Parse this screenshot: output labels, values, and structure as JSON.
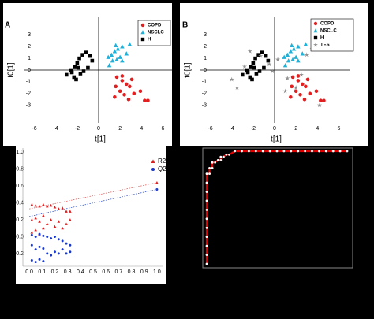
{
  "chart_data": [
    {
      "type": "scatter",
      "panel_label": "A",
      "xlabel": "t[1]",
      "ylabel": "t0[1]",
      "xlim": [
        -7,
        7
      ],
      "ylim": [
        -4.5,
        4.5
      ],
      "xticks": [
        -6,
        -4,
        -2,
        0,
        2,
        4,
        6
      ],
      "yticks": [
        -3,
        -2,
        -1,
        0,
        1,
        2,
        3
      ],
      "legend": "upper right",
      "series": [
        {
          "name": "COPD",
          "color": "#e02020",
          "marker": "circle",
          "x": [
            1.7,
            2.2,
            1.6,
            2.6,
            2.0,
            2.9,
            3.3,
            2.4,
            1.5,
            3.9,
            4.3,
            2.8,
            4.6,
            2.2,
            3.1
          ],
          "values": [
            -0.6,
            -0.5,
            -1.4,
            -1.2,
            -1.8,
            -1.4,
            -2.0,
            -2.1,
            -2.3,
            -1.8,
            -2.6,
            -2.5,
            -2.6,
            -0.9,
            -0.8
          ]
        },
        {
          "name": "NSCLC",
          "color": "#20b0d8",
          "marker": "triangle",
          "x": [
            0.9,
            1.2,
            1.5,
            1.8,
            2.2,
            1.3,
            1.7,
            2.0,
            1.0,
            2.6,
            2.9,
            1.6,
            2.2
          ],
          "values": [
            1.1,
            1.3,
            1.6,
            1.8,
            2.0,
            0.8,
            0.9,
            1.1,
            0.4,
            1.4,
            2.2,
            2.1,
            0.8
          ]
        },
        {
          "name": "H",
          "color": "#000000",
          "marker": "square",
          "x": [
            -3.0,
            -2.5,
            -2.2,
            -2.0,
            -1.8,
            -1.5,
            -1.2,
            -2.3,
            -1.7,
            -1.0,
            -0.8,
            -2.6,
            -1.9,
            -1.4,
            -0.6,
            -2.1
          ],
          "values": [
            -0.4,
            -0.2,
            0.3,
            0.6,
            1.0,
            1.3,
            1.5,
            -0.6,
            -0.3,
            0.2,
            1.2,
            0.0,
            0.2,
            -0.1,
            0.8,
            -0.8
          ]
        }
      ]
    },
    {
      "type": "scatter",
      "panel_label": "B",
      "xlabel": "t[1]",
      "ylabel": "t0[1]",
      "xlim": [
        -7,
        7
      ],
      "ylim": [
        -4.5,
        4.5
      ],
      "xticks": [
        -6,
        -4,
        -2,
        0,
        2,
        4,
        6
      ],
      "yticks": [
        -3,
        -2,
        -1,
        0,
        1,
        2,
        3
      ],
      "legend": "upper right",
      "series": [
        {
          "name": "COPD",
          "color": "#e02020",
          "marker": "circle",
          "x": [
            1.7,
            2.2,
            1.6,
            2.6,
            2.0,
            2.9,
            3.3,
            2.4,
            1.5,
            3.9,
            4.3,
            2.8,
            4.6,
            2.2,
            3.1
          ],
          "values": [
            -0.6,
            -0.5,
            -1.4,
            -1.2,
            -1.8,
            -1.4,
            -2.0,
            -2.1,
            -2.3,
            -1.8,
            -2.6,
            -2.5,
            -2.6,
            -0.9,
            -0.8
          ]
        },
        {
          "name": "NSCLC",
          "color": "#20b0d8",
          "marker": "triangle",
          "x": [
            0.9,
            1.2,
            1.5,
            1.8,
            2.2,
            1.3,
            1.7,
            2.0,
            1.0,
            2.6,
            2.9,
            1.6,
            2.2
          ],
          "values": [
            1.1,
            1.3,
            1.6,
            1.8,
            2.0,
            0.8,
            0.9,
            1.1,
            0.4,
            1.4,
            2.2,
            2.1,
            0.8
          ]
        },
        {
          "name": "H",
          "color": "#000000",
          "marker": "square",
          "x": [
            -3.0,
            -2.5,
            -2.2,
            -2.0,
            -1.8,
            -1.5,
            -1.2,
            -2.3,
            -1.7,
            -1.0,
            -0.8,
            -2.6,
            -1.9,
            -1.4,
            -0.6,
            -2.1
          ],
          "values": [
            -0.4,
            -0.2,
            0.3,
            0.6,
            1.0,
            1.3,
            1.5,
            -0.6,
            -0.3,
            0.2,
            1.2,
            0.0,
            0.2,
            -0.1,
            0.8,
            -0.8
          ]
        },
        {
          "name": "TEST",
          "color": "#909090",
          "marker": "star",
          "x": [
            -4.0,
            -3.5,
            -2.8,
            -2.3,
            -1.3,
            -0.5,
            0.3,
            1.2,
            2.5,
            3.5,
            2.0,
            4.2,
            1.0,
            -0.2,
            3.0
          ],
          "values": [
            -0.8,
            -1.5,
            0.3,
            1.6,
            1.2,
            0.5,
            0.9,
            -0.7,
            -0.4,
            1.8,
            -1.5,
            -3.0,
            -1.8,
            -0.1,
            1.3
          ]
        }
      ]
    },
    {
      "type": "scatter",
      "xlim": [
        -0.05,
        1.05
      ],
      "ylim": [
        -0.35,
        1.05
      ],
      "xticks": [
        {
          "value": 0,
          "label": "0.0"
        },
        0.1,
        0.2,
        0.3,
        0.4,
        0.5,
        0.6,
        0.7,
        0.8,
        0.9,
        {
          "value": 1,
          "label": "1.0"
        }
      ],
      "yticks": [
        -0.2,
        {
          "value": 0,
          "label": "0.0"
        },
        0.2,
        0.4,
        0.6,
        0.8,
        {
          "value": 1,
          "label": "1.0"
        }
      ],
      "legend": "upper right",
      "series": [
        {
          "name": "R2",
          "color": "#d82020",
          "marker": "triangle",
          "x": [
            0.02,
            0.02,
            0.02,
            0.05,
            0.05,
            0.05,
            0.08,
            0.08,
            0.08,
            0.11,
            0.11,
            0.11,
            0.14,
            0.14,
            0.17,
            0.17,
            0.2,
            0.2,
            0.23,
            0.23,
            0.26,
            0.26,
            0.29,
            0.29,
            0.32,
            0.32,
            1.0
          ],
          "values": [
            0.38,
            0.2,
            0.05,
            0.37,
            0.22,
            0.08,
            0.36,
            0.18,
            0.03,
            0.38,
            0.25,
            0.1,
            0.36,
            0.15,
            0.37,
            0.2,
            0.35,
            0.12,
            0.33,
            0.18,
            0.34,
            0.1,
            0.3,
            0.15,
            0.3,
            0.2,
            0.64
          ]
        },
        {
          "name": "Q2",
          "color": "#1838c8",
          "marker": "circle",
          "x": [
            0.02,
            0.02,
            0.02,
            0.05,
            0.05,
            0.05,
            0.08,
            0.08,
            0.08,
            0.11,
            0.11,
            0.11,
            0.14,
            0.14,
            0.17,
            0.17,
            0.2,
            0.2,
            0.23,
            0.23,
            0.26,
            0.26,
            0.29,
            0.29,
            0.32,
            0.32,
            1.0
          ],
          "values": [
            0.02,
            -0.1,
            -0.28,
            0.0,
            -0.15,
            -0.3,
            0.03,
            -0.12,
            -0.27,
            0.01,
            -0.14,
            -0.29,
            0.0,
            -0.2,
            -0.02,
            -0.22,
            0.0,
            -0.18,
            -0.03,
            -0.2,
            -0.05,
            -0.15,
            -0.08,
            -0.2,
            -0.1,
            -0.18,
            0.56
          ]
        },
        {
          "type": "line",
          "dash": true,
          "color": "#e06060",
          "x": [
            0,
            1
          ],
          "values": [
            0.33,
            0.64
          ]
        },
        {
          "type": "line",
          "dash": true,
          "color": "#4060d0",
          "x": [
            0,
            1
          ],
          "values": [
            0.24,
            0.56
          ]
        }
      ]
    },
    {
      "type": "line",
      "xlim": [
        0,
        1
      ],
      "ylim": [
        0,
        1
      ],
      "series": [
        {
          "color": "#e00000",
          "marker": "circle",
          "marker_color": "#ffffff",
          "x": [
            0,
            0,
            0,
            0,
            0,
            0,
            0,
            0,
            0,
            0,
            0,
            0.02,
            0.02,
            0.04,
            0.04,
            0.06,
            0.08,
            0.1,
            0.1,
            0.12,
            0.14,
            0.16,
            0.2,
            0.25,
            0.3,
            0.35,
            0.4,
            0.45,
            0.5,
            0.55,
            0.6,
            0.65,
            0.7,
            0.75,
            0.8,
            0.85,
            0.9,
            0.95,
            1.0
          ],
          "values": [
            0,
            0.08,
            0.16,
            0.24,
            0.32,
            0.4,
            0.48,
            0.56,
            0.64,
            0.72,
            0.8,
            0.8,
            0.85,
            0.85,
            0.9,
            0.9,
            0.92,
            0.92,
            0.95,
            0.95,
            0.97,
            0.97,
            1,
            1,
            1,
            1,
            1,
            1,
            1,
            1,
            1,
            1,
            1,
            1,
            1,
            1,
            1,
            1,
            1
          ]
        }
      ]
    }
  ]
}
